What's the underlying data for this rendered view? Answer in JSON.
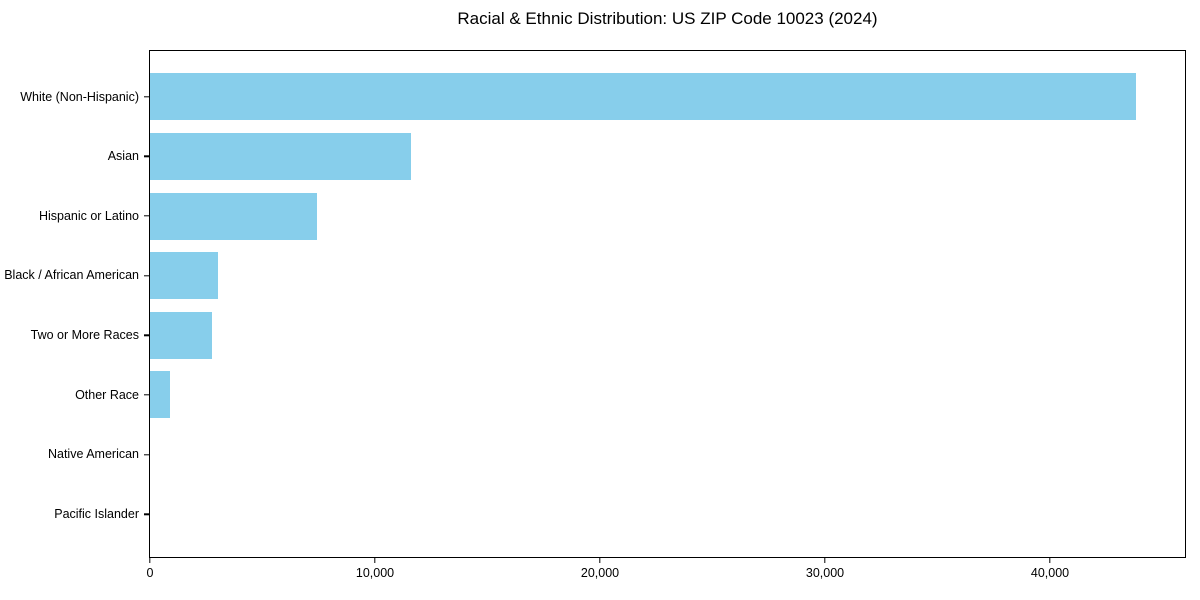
{
  "chart_data": {
    "type": "bar",
    "orientation": "horizontal",
    "title": "Racial & Ethnic Distribution: US ZIP Code 10023 (2024)",
    "categories": [
      "White (Non-Hispanic)",
      "Asian",
      "Hispanic or Latino",
      "Black / African American",
      "Two or More Races",
      "Other Race",
      "Native American",
      "Pacific Islander"
    ],
    "values": [
      43800,
      11600,
      7400,
      3000,
      2750,
      900,
      0,
      0
    ],
    "xlabel": "",
    "ylabel": "",
    "xlim": [
      0,
      46000
    ],
    "xticks": [
      0,
      10000,
      20000,
      30000,
      40000
    ],
    "xtick_labels": [
      "0",
      "10,000",
      "20,000",
      "30,000",
      "40,000"
    ],
    "grid": false,
    "legend": null,
    "colors": {
      "bar": "#87CEEB",
      "spine": "#000000",
      "text": "#000000",
      "background": "#ffffff"
    }
  }
}
